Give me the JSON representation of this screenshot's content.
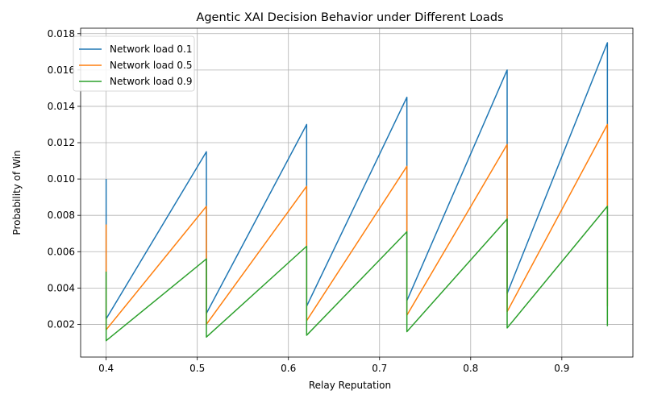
{
  "chart_data": {
    "type": "line",
    "title": "Agentic XAI Decision Behavior under Different Loads",
    "xlabel": "Relay Reputation",
    "ylabel": "Probability of Win",
    "xlim": [
      0.372,
      0.978
    ],
    "ylim": [
      0.0002,
      0.0183
    ],
    "xticks": [
      0.4,
      0.5,
      0.6,
      0.7,
      0.8,
      0.9
    ],
    "xtick_labels": [
      "0.4",
      "0.5",
      "0.6",
      "0.7",
      "0.8",
      "0.9"
    ],
    "yticks": [
      0.002,
      0.004,
      0.006,
      0.008,
      0.01,
      0.012,
      0.014,
      0.016,
      0.018
    ],
    "ytick_labels": [
      "0.002",
      "0.004",
      "0.006",
      "0.008",
      "0.010",
      "0.012",
      "0.014",
      "0.016",
      "0.018"
    ],
    "grid": true,
    "legend_position": "upper-left",
    "series": [
      {
        "name": "Network load 0.1",
        "color": "#1f77b4",
        "points": [
          [
            0.4,
            0.01
          ],
          [
            0.4,
            0.0023
          ],
          [
            0.51,
            0.0115
          ],
          [
            0.51,
            0.0026
          ],
          [
            0.62,
            0.013
          ],
          [
            0.62,
            0.003
          ],
          [
            0.73,
            0.0145
          ],
          [
            0.73,
            0.0033
          ],
          [
            0.84,
            0.016
          ],
          [
            0.84,
            0.0037
          ],
          [
            0.95,
            0.0175
          ],
          [
            0.95,
            0.004
          ]
        ]
      },
      {
        "name": "Network load 0.5",
        "color": "#ff7f0e",
        "points": [
          [
            0.4,
            0.0075
          ],
          [
            0.4,
            0.0017
          ],
          [
            0.51,
            0.0085
          ],
          [
            0.51,
            0.002
          ],
          [
            0.62,
            0.0096
          ],
          [
            0.62,
            0.0022
          ],
          [
            0.73,
            0.0107
          ],
          [
            0.73,
            0.0025
          ],
          [
            0.84,
            0.0119
          ],
          [
            0.84,
            0.0027
          ],
          [
            0.95,
            0.013
          ],
          [
            0.95,
            0.003
          ]
        ]
      },
      {
        "name": "Network load 0.9",
        "color": "#2ca02c",
        "points": [
          [
            0.4,
            0.0049
          ],
          [
            0.4,
            0.0011
          ],
          [
            0.51,
            0.0056
          ],
          [
            0.51,
            0.0013
          ],
          [
            0.62,
            0.0063
          ],
          [
            0.62,
            0.0014
          ],
          [
            0.73,
            0.0071
          ],
          [
            0.73,
            0.0016
          ],
          [
            0.84,
            0.0078
          ],
          [
            0.84,
            0.0018
          ],
          [
            0.95,
            0.0085
          ],
          [
            0.95,
            0.0019
          ]
        ]
      }
    ]
  }
}
